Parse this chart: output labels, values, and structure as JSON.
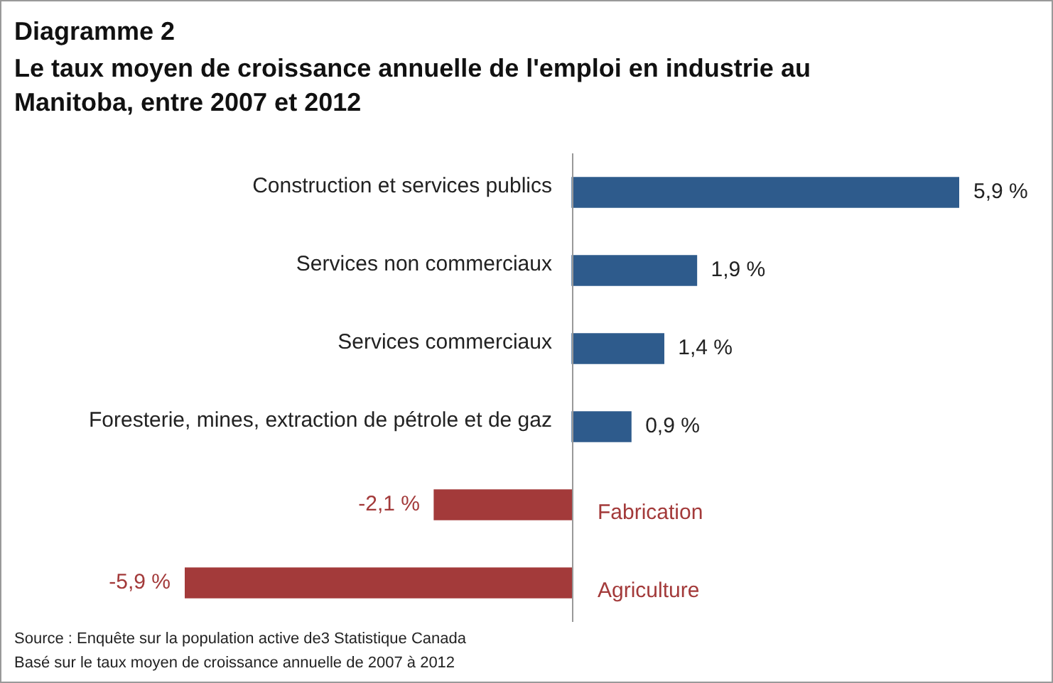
{
  "chart_data": {
    "type": "bar",
    "orientation": "horizontal",
    "title": "Diagramme 2",
    "subtitle": "Le taux moyen de croissance annuelle de l'emploi en industrie au Manitoba, entre 2007 et 2012",
    "categories": [
      "Construction et services publics",
      "Services non commerciaux",
      "Services commerciaux",
      "Foresterie, mines, extraction de pétrole et de gaz",
      "Fabrication",
      "Agriculture"
    ],
    "values": [
      5.9,
      1.9,
      1.4,
      0.9,
      -2.1,
      -5.9
    ],
    "value_labels": [
      "5,9 %",
      "1,9 %",
      "1,4 %",
      "0,9 %",
      "-2,1 %",
      "-5,9 %"
    ],
    "colors": [
      "#2e5b8c",
      "#2e5b8c",
      "#2e5b8c",
      "#2e5b8c",
      "#a33a3a",
      "#a33a3a"
    ],
    "annotations": [
      "Source : Enquête sur la population active de3 Statistique  Canada",
      "Basé sur le taux moyen de croissance annuelle de 2007 à 2012"
    ],
    "legend": false
  }
}
